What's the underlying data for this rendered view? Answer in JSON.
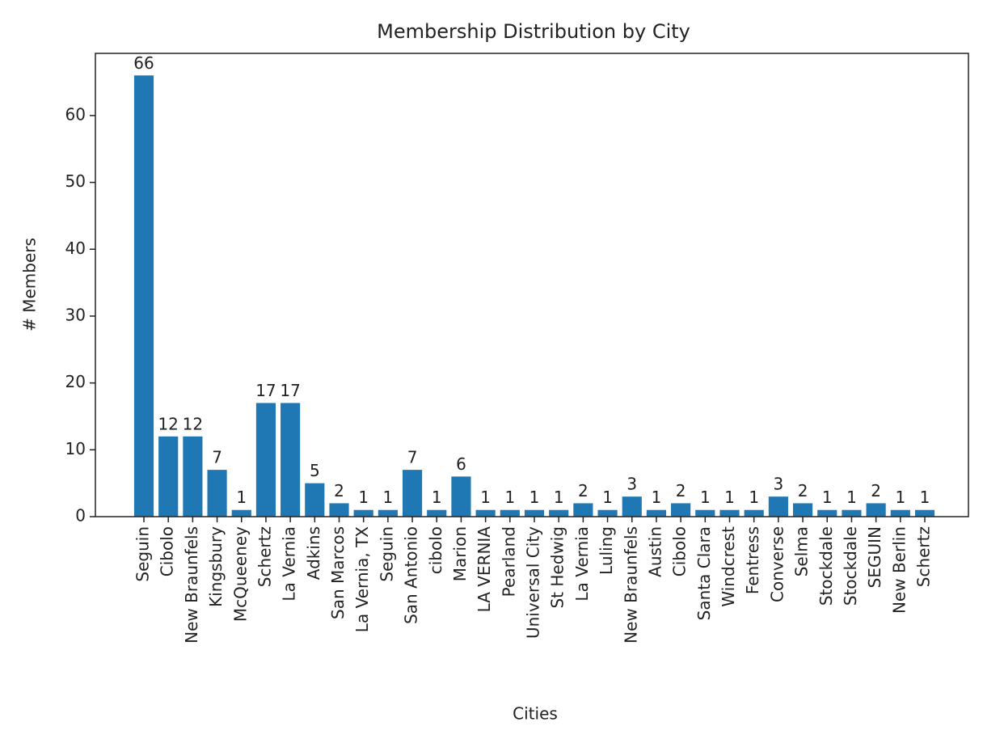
{
  "chart_data": {
    "type": "bar",
    "title": "Membership Distribution by City",
    "x_label": "Cities",
    "y_label": "# Members",
    "categories": [
      "Seguin",
      "Cibolo",
      "New Braunfels",
      "Kingsbury",
      "McQueeney",
      "Schertz",
      "La Vernia",
      "Adkins",
      "San Marcos",
      "La Vernia, TX",
      "Seguin",
      "San Antonio",
      "cibolo",
      "Marion",
      "LA VERNIA",
      "Pearland",
      "Universal City",
      "St Hedwig",
      "La Vernia",
      "Luling",
      "New Braunfels",
      "Austin",
      "Cibolo",
      "Santa Clara",
      "Windcrest",
      "Fentress",
      "Converse",
      "Selma",
      "Stockdale",
      "Stockdale",
      "SEGUIN",
      "New Berlin",
      "Schertz"
    ],
    "values": [
      66,
      12,
      12,
      7,
      1,
      17,
      17,
      5,
      2,
      1,
      1,
      7,
      1,
      6,
      1,
      1,
      1,
      1,
      2,
      1,
      3,
      1,
      2,
      1,
      1,
      1,
      3,
      2,
      1,
      1,
      2,
      1,
      1
    ],
    "color": "#1f77b4",
    "ylim": [
      0,
      69.3
    ],
    "yticks": [
      0,
      10,
      20,
      30,
      40,
      50,
      60
    ],
    "grid": false
  }
}
